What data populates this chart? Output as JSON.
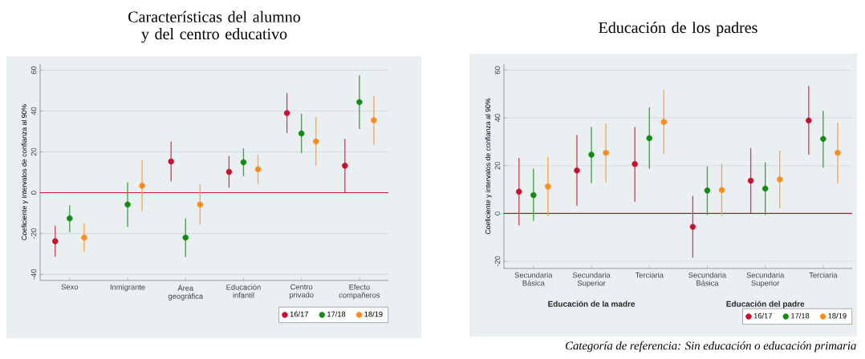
{
  "chart_data": [
    {
      "type": "scatter",
      "title": "Características del alumno y del centro educativo",
      "ylabel": "Coeficiente y intervalos de confianza al 90%",
      "categories": [
        "Sexo",
        "Inmigrante",
        "Área geográfica",
        "Educación infantil",
        "Centro privado",
        "Efecto compañeros"
      ],
      "series": [
        {
          "name": "16/17",
          "color": "#c8102e",
          "values": [
            -23.8,
            null,
            15.3,
            10.2,
            39,
            13.2
          ],
          "errors": [
            [
              -31.4,
              -16.2
            ],
            null,
            [
              5.6,
              25
            ],
            [
              2.4,
              18
            ],
            [
              29.2,
              48.8
            ],
            [
              0,
              26.4
            ]
          ]
        },
        {
          "name": "17/18",
          "color": "#138a13",
          "values": [
            -12.6,
            -5.8,
            -22,
            14.9,
            29,
            44.4
          ],
          "errors": [
            [
              -19.4,
              -6.2
            ],
            [
              -16.8,
              5.1
            ],
            [
              -31.5,
              -12.6
            ],
            [
              8.1,
              21.7
            ],
            [
              19.4,
              38.7
            ],
            [
              31.2,
              57.5
            ]
          ]
        },
        {
          "name": "18/19",
          "color": "#ff8c1a",
          "values": [
            -22,
            3.4,
            -5.8,
            11.5,
            25.1,
            35.5
          ],
          "errors": [
            [
              -29,
              -15
            ],
            [
              -9,
              16
            ],
            [
              -15.7,
              4.1
            ],
            [
              4.2,
              18.8
            ],
            [
              13,
              37.2
            ],
            [
              23.4,
              47.5
            ]
          ]
        }
      ],
      "ylim": [
        -43,
        63
      ],
      "yticks": [
        -40,
        -20,
        0,
        20,
        40,
        60
      ],
      "grid": "y",
      "legend": "bottom right",
      "marker": "circle",
      "ref_lines": [
        {
          "axis": "y",
          "value": 0,
          "color": "#c8102e"
        }
      ]
    },
    {
      "type": "scatter",
      "title": "Educación de los padres",
      "ylabel": "Coeficiente y intervalos de confianza al 90%",
      "categories": [
        "Secundaria Básica",
        "Secundaria Superior",
        "Terciaria",
        "Secundaria Básica",
        "Secundaria Superior",
        "Terciaria"
      ],
      "series": [
        {
          "name": "16/17",
          "color": "#c8102e",
          "values": [
            9.1,
            18,
            20.7,
            -5.6,
            13.7,
            38.9
          ],
          "errors": [
            [
              -5.1,
              23.2
            ],
            [
              3.2,
              32.8
            ],
            [
              4.9,
              36.2
            ],
            [
              -18.5,
              7.4
            ],
            [
              0,
              27.3
            ],
            [
              24.6,
              53.4
            ]
          ]
        },
        {
          "name": "17/18",
          "color": "#138a13",
          "values": [
            7.7,
            24.6,
            31.5,
            9.6,
            10.4,
            31.2
          ],
          "errors": [
            [
              -3.1,
              18.7
            ],
            [
              12.7,
              36.3
            ],
            [
              18.7,
              44.4
            ],
            [
              -0.7,
              19.7
            ],
            [
              -0.7,
              21.3
            ],
            [
              19.2,
              43
            ]
          ]
        },
        {
          "name": "18/19",
          "color": "#ff8c1a",
          "values": [
            11.3,
            25.4,
            38.3,
            9.8,
            14.2,
            25.4
          ],
          "errors": [
            [
              -1.2,
              23.8
            ],
            [
              13,
              37.7
            ],
            [
              25,
              51.6
            ],
            [
              -1.2,
              20.8
            ],
            [
              2.1,
              26.3
            ],
            [
              12.6,
              38.1
            ]
          ]
        }
      ],
      "ylim": [
        -23,
        62.5
      ],
      "yticks": [
        -20,
        0,
        20,
        40,
        60
      ],
      "grid": "y",
      "legend": "bottom right",
      "marker": "circle",
      "ref_lines": [
        {
          "axis": "y",
          "value": 0,
          "color": "#c8102e"
        }
      ],
      "annotations": [
        "Educación de la madre",
        "Educación del padre",
        "*Categoría de referencia: Sin educación o educación primaria*"
      ]
    }
  ]
}
